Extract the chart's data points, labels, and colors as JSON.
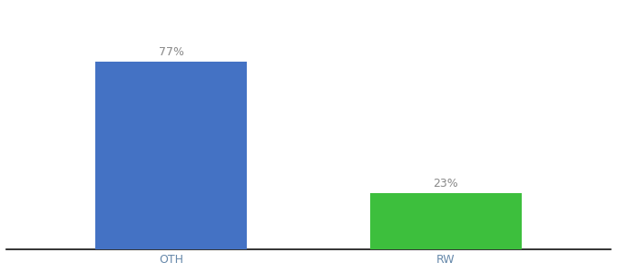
{
  "categories": [
    "OTH",
    "RW"
  ],
  "values": [
    77,
    23
  ],
  "bar_colors": [
    "#4472C4",
    "#3DBF3D"
  ],
  "label_texts": [
    "77%",
    "23%"
  ],
  "ylim": [
    0,
    100
  ],
  "xlim": [
    -0.1,
    2.1
  ],
  "x_positions": [
    0.5,
    1.5
  ],
  "background_color": "#ffffff",
  "label_color": "#888888",
  "label_fontsize": 9,
  "tick_fontsize": 9,
  "bar_width": 0.55
}
